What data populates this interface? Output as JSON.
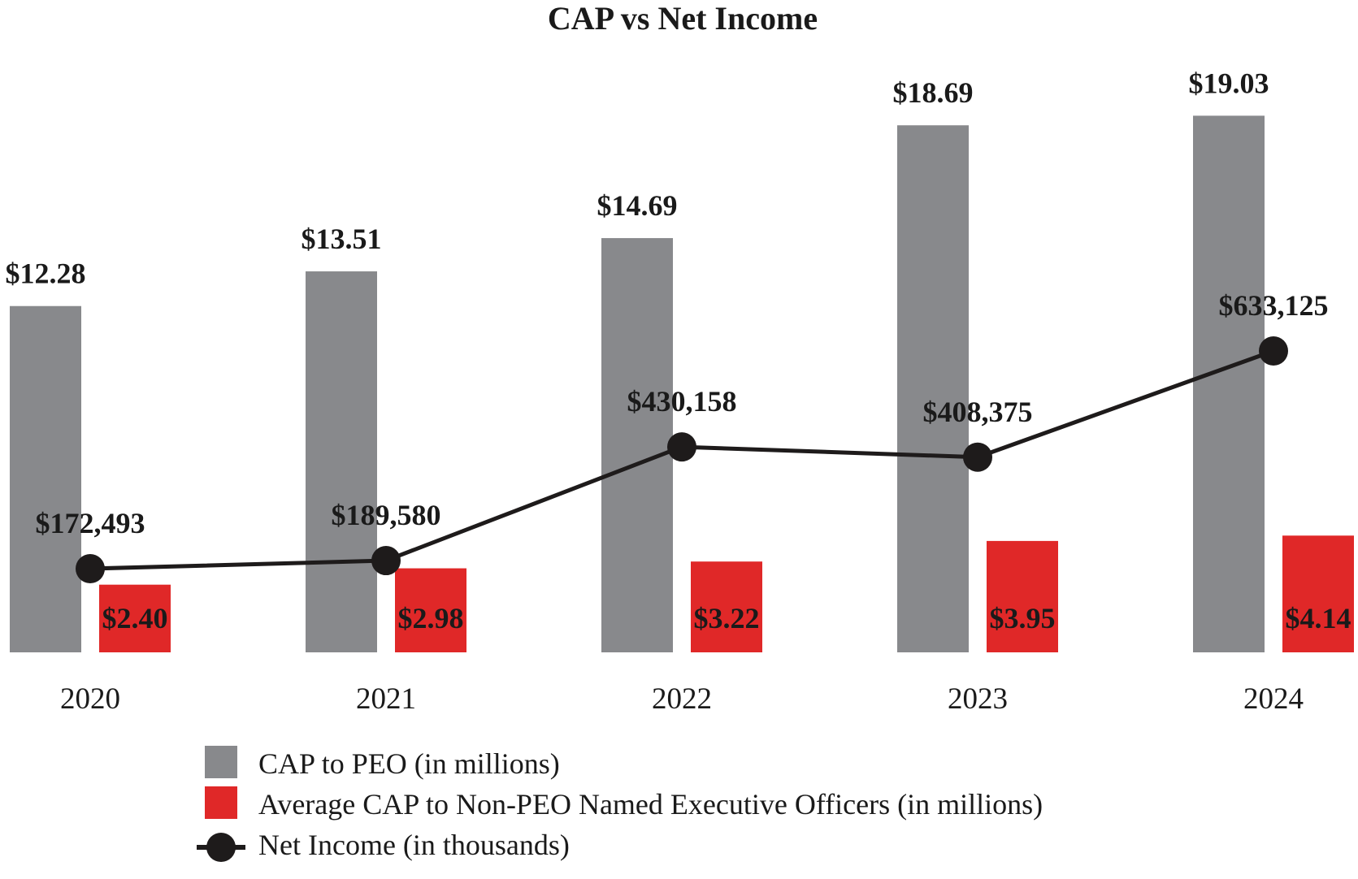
{
  "colors": {
    "peo": "#88898c",
    "non_peo": "#e02828",
    "line": "#1e1b1b",
    "text": "#1a1a1a"
  },
  "chart_data": {
    "type": "bar",
    "title": "CAP vs Net Income",
    "categories": [
      "2020",
      "2021",
      "2022",
      "2023",
      "2024"
    ],
    "series": [
      {
        "name": "CAP to PEO (in millions)",
        "type": "bar",
        "values": [
          12.28,
          13.51,
          14.69,
          18.69,
          19.03
        ],
        "labels": [
          "$12.28",
          "$13.51",
          "$14.69",
          "$18.69",
          "$19.03"
        ]
      },
      {
        "name": "Average CAP to Non-PEO Named Executive Officers (in millions)",
        "type": "bar",
        "values": [
          2.4,
          2.98,
          3.22,
          3.95,
          4.14
        ],
        "labels": [
          "$2.40",
          "$2.98",
          "$3.22",
          "$3.95",
          "$4.14"
        ]
      },
      {
        "name": "Net Income (in thousands)",
        "type": "line",
        "values": [
          172493,
          189580,
          430158,
          408375,
          633125
        ],
        "labels": [
          "$172,493",
          "$189,580",
          "$430,158",
          "$408,375",
          "$633,125"
        ]
      }
    ],
    "legend_position": "bottom",
    "grid": false
  }
}
